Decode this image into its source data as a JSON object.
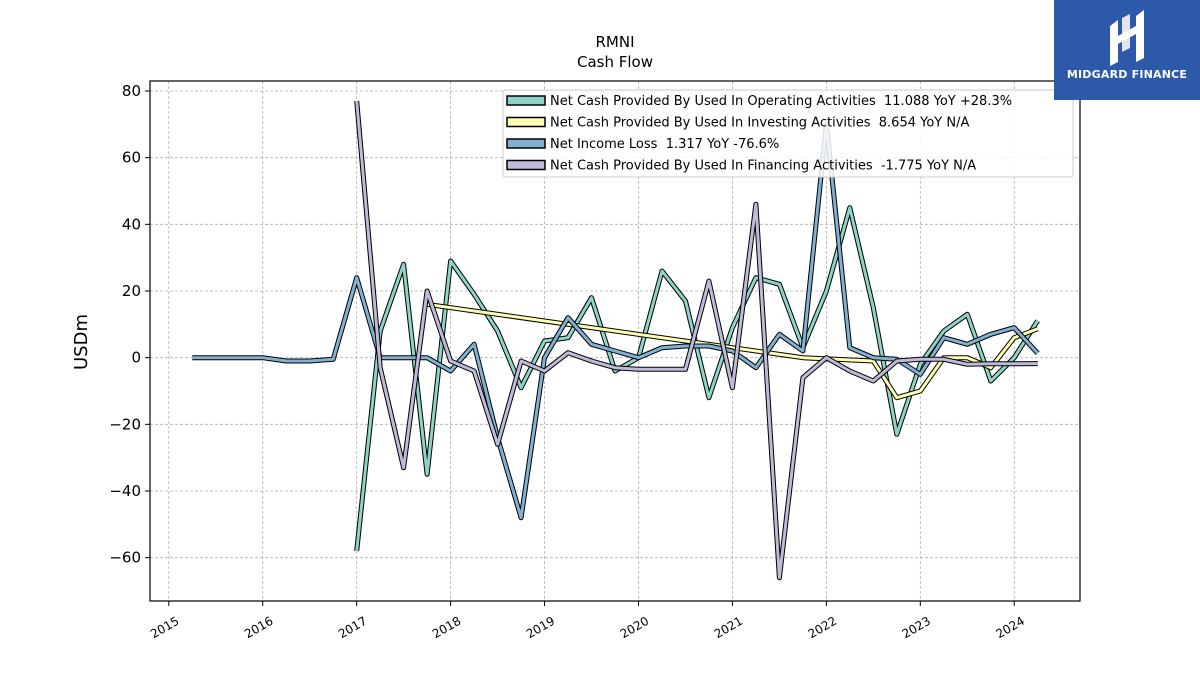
{
  "chart_data": {
    "type": "line",
    "title": "RMNI",
    "subtitle": "Cash Flow",
    "xlabel": "",
    "ylabel": "USDm",
    "xlim": [
      2014.8,
      2024.7
    ],
    "ylim": [
      -73,
      83
    ],
    "x_ticks": [
      "2015",
      "2016",
      "2017",
      "2018",
      "2019",
      "2020",
      "2021",
      "2022",
      "2023",
      "2024"
    ],
    "y_ticks": [
      -60,
      -40,
      -20,
      0,
      20,
      40,
      60,
      80
    ],
    "grid": true,
    "legend_position": "top-right",
    "series": [
      {
        "name": "Net Cash Provided By Used In Operating Activities  11.088 YoY +28.3%",
        "color": "#8dd3c7",
        "x": [
          2017.0,
          2017.25,
          2017.5,
          2017.75,
          2018.0,
          2018.25,
          2018.5,
          2018.75,
          2019.0,
          2019.25,
          2019.5,
          2019.75,
          2020.0,
          2020.25,
          2020.5,
          2020.75,
          2021.0,
          2021.25,
          2021.5,
          2021.75,
          2022.0,
          2022.25,
          2022.5,
          2022.75,
          2023.0,
          2023.25,
          2023.5,
          2023.75,
          2024.0,
          2024.25
        ],
        "y": [
          -58,
          8,
          28,
          -35,
          29,
          19,
          8,
          -9,
          5,
          6,
          18,
          -4,
          0,
          26,
          17,
          -12,
          9,
          24,
          22,
          3,
          20,
          45,
          15,
          -23,
          -2,
          8,
          13,
          -7,
          0,
          11.088
        ]
      },
      {
        "name": "Net Cash Provided By Used In Investing Activities  8.654 YoY N/A",
        "color": "#ffffb3",
        "x": [
          2017.75,
          2021.75,
          2022.5,
          2022.75,
          2023.0,
          2023.25,
          2023.5,
          2023.75,
          2024.0,
          2024.25
        ],
        "y": [
          16,
          0,
          -1,
          -12,
          -10,
          0,
          0,
          -3,
          6,
          8.654
        ]
      },
      {
        "name": "Net Income Loss  1.317 YoY -76.6%",
        "color": "#80b1d3",
        "x": [
          2015.25,
          2015.5,
          2015.75,
          2016.0,
          2016.25,
          2016.5,
          2016.75,
          2017.0,
          2017.25,
          2017.5,
          2017.75,
          2018.0,
          2018.25,
          2018.5,
          2018.75,
          2019.0,
          2019.25,
          2019.5,
          2019.75,
          2020.0,
          2020.25,
          2020.5,
          2020.75,
          2021.0,
          2021.25,
          2021.5,
          2021.75,
          2022.0,
          2022.25,
          2022.5,
          2022.75,
          2023.0,
          2023.25,
          2023.5,
          2023.75,
          2024.0,
          2024.25
        ],
        "y": [
          0,
          0,
          0,
          0,
          -1,
          -1,
          -0.5,
          24,
          0,
          0,
          0,
          -4,
          4,
          -24,
          -48,
          0,
          12,
          4,
          2,
          0,
          3,
          3.5,
          3.5,
          2,
          -3,
          7,
          2,
          70,
          3,
          0,
          -0.5,
          -5,
          6,
          4,
          7,
          9,
          1.317
        ]
      },
      {
        "name": "Net Cash Provided By Used In Financing Activities  -1.775 YoY N/A",
        "color": "#bebada",
        "x": [
          2017.0,
          2017.25,
          2017.5,
          2017.75,
          2018.0,
          2018.25,
          2018.5,
          2018.75,
          2019.0,
          2019.25,
          2019.5,
          2019.75,
          2020.0,
          2020.25,
          2020.5,
          2020.75,
          2021.0,
          2021.25,
          2021.5,
          2021.75,
          2022.0,
          2022.25,
          2022.5,
          2022.75,
          2023.0,
          2023.25,
          2023.5,
          2023.75,
          2024.0,
          2024.25
        ],
        "y": [
          77,
          -3,
          -33,
          20,
          -1,
          -4,
          -26,
          -1,
          -4,
          1.5,
          -1,
          -3,
          -3.5,
          -3.5,
          -3.5,
          23,
          -9,
          46,
          -66,
          -6,
          0,
          -4,
          -7,
          -1,
          -0.5,
          -0.5,
          -2,
          -1.8,
          -1.8,
          -1.775
        ]
      }
    ]
  },
  "logo": {
    "text": "MIDGARD FINANCE",
    "background": "#2d5aa8"
  }
}
